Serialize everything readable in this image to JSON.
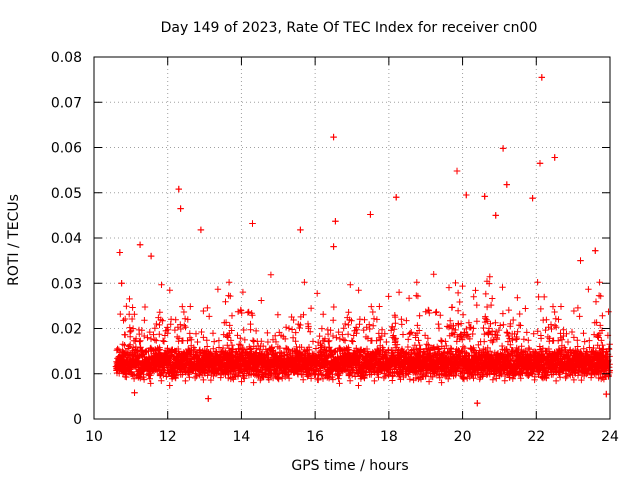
{
  "chart_data": {
    "type": "scatter",
    "title": "Day 149 of 2023, Rate Of TEC Index for receiver cn00",
    "xlabel": "GPS time / hours",
    "ylabel": "ROTI / TECUs",
    "xlim": [
      10,
      24
    ],
    "ylim": [
      0,
      0.08
    ],
    "xticks": [
      10,
      12,
      14,
      16,
      18,
      20,
      22,
      24
    ],
    "xtick_labels": [
      "10",
      "12",
      "14",
      "16",
      "18",
      "20",
      "22",
      "24"
    ],
    "yticks": [
      0,
      0.01,
      0.02,
      0.03,
      0.04,
      0.05,
      0.06,
      0.07,
      0.08
    ],
    "ytick_labels": [
      "0",
      "0.01",
      "0.02",
      "0.03",
      "0.04",
      "0.05",
      "0.06",
      "0.07",
      "0.08"
    ],
    "grid": true,
    "marker": "+",
    "color": "#ff0000",
    "time_start": 10.6,
    "time_end": 24.0,
    "series": [
      {
        "name": "ROTI",
        "notable_points": [
          {
            "x": 22.15,
            "y": 0.0755
          },
          {
            "x": 16.5,
            "y": 0.0623
          },
          {
            "x": 21.1,
            "y": 0.0598
          },
          {
            "x": 22.5,
            "y": 0.0578
          },
          {
            "x": 22.1,
            "y": 0.0565
          },
          {
            "x": 19.85,
            "y": 0.0548
          },
          {
            "x": 21.2,
            "y": 0.0518
          },
          {
            "x": 12.3,
            "y": 0.0508
          },
          {
            "x": 20.1,
            "y": 0.0495
          },
          {
            "x": 18.2,
            "y": 0.049
          },
          {
            "x": 20.6,
            "y": 0.0492
          },
          {
            "x": 21.9,
            "y": 0.0488
          },
          {
            "x": 12.35,
            "y": 0.0465
          },
          {
            "x": 17.5,
            "y": 0.0452
          },
          {
            "x": 20.9,
            "y": 0.045
          },
          {
            "x": 16.55,
            "y": 0.0437
          },
          {
            "x": 14.3,
            "y": 0.0432
          },
          {
            "x": 15.6,
            "y": 0.0418
          },
          {
            "x": 12.9,
            "y": 0.0418
          },
          {
            "x": 11.25,
            "y": 0.0385
          },
          {
            "x": 16.5,
            "y": 0.0381
          },
          {
            "x": 10.7,
            "y": 0.0368
          },
          {
            "x": 23.6,
            "y": 0.0372
          },
          {
            "x": 11.55,
            "y": 0.036
          },
          {
            "x": 23.2,
            "y": 0.035
          },
          {
            "x": 10.75,
            "y": 0.03
          },
          {
            "x": 11.1,
            "y": 0.0058
          },
          {
            "x": 13.1,
            "y": 0.0045
          },
          {
            "x": 20.4,
            "y": 0.0035
          },
          {
            "x": 23.9,
            "y": 0.0055
          }
        ]
      }
    ]
  }
}
